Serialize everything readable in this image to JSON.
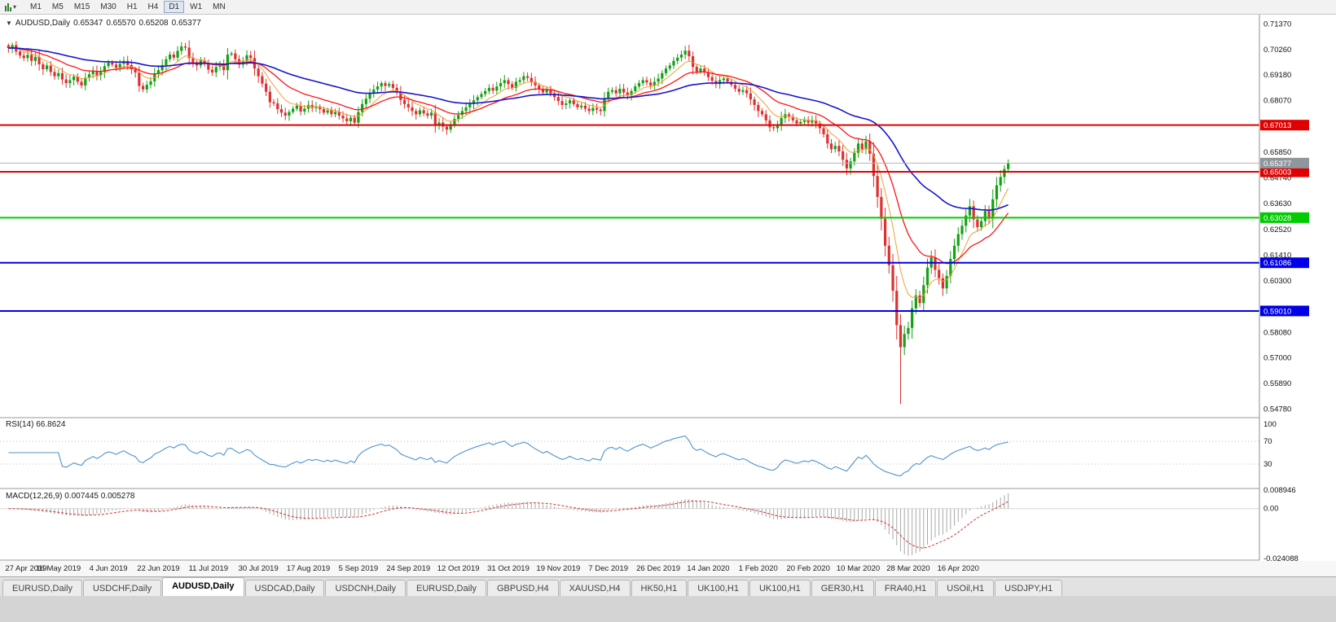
{
  "toolbar": {
    "timeframes": [
      "M1",
      "M5",
      "M15",
      "M30",
      "H1",
      "H4",
      "D1",
      "W1",
      "MN"
    ],
    "active": "D1",
    "chart_type_icon": "candlestick-chart-dropdown"
  },
  "header": {
    "menu_glyph": "▼",
    "symbol": "AUDUSD,Daily",
    "open": "0.65347",
    "high": "0.65570",
    "low": "0.65208",
    "close": "0.65377"
  },
  "tab_bar": {
    "active_index": 2,
    "tabs": [
      "EURUSD,Daily",
      "USDCHF,Daily",
      "AUDUSD,Daily",
      "USDCAD,Daily",
      "USDCNH,Daily",
      "EURUSD,Daily",
      "GBPUSD,H4",
      "XAUUSD,H4",
      "HK50,H1",
      "UK100,H1",
      "UK100,H1",
      "GER30,H1",
      "FRA40,H1",
      "USOil,H1",
      "USDJPY,H1"
    ]
  },
  "chart_data": {
    "type": "candlestick",
    "symbol": "AUDUSD",
    "timeframe": "Daily",
    "y_range": [
      0.5445,
      0.717
    ],
    "x_label_step": 13,
    "x_labels": [
      "27 Apr 2019",
      "16 May 2019",
      "4 Jun 2019",
      "22 Jun 2019",
      "11 Jul 2019",
      "30 Jul 2019",
      "17 Aug 2019",
      "5 Sep 2019",
      "24 Sep 2019",
      "12 Oct 2019",
      "31 Oct 2019",
      "19 Nov 2019",
      "7 Dec 2019",
      "26 Dec 2019",
      "14 Jan 2020",
      "1 Feb 2020",
      "20 Feb 2020",
      "10 Mar 2020",
      "28 Mar 2020",
      "16 Apr 2020"
    ],
    "closes": [
      0.7033,
      0.7046,
      0.7018,
      0.7001,
      0.699,
      0.7004,
      0.6978,
      0.6995,
      0.6963,
      0.6942,
      0.6958,
      0.693,
      0.6912,
      0.6925,
      0.6898,
      0.6882,
      0.6895,
      0.691,
      0.6888,
      0.6872,
      0.6905,
      0.692,
      0.6935,
      0.6915,
      0.693,
      0.6955,
      0.697,
      0.6962,
      0.6948,
      0.6965,
      0.6978,
      0.696,
      0.6942,
      0.6928,
      0.687,
      0.6855,
      0.6875,
      0.689,
      0.6922,
      0.6938,
      0.696,
      0.6985,
      0.7005,
      0.6992,
      0.7021,
      0.704,
      0.7035,
      0.699,
      0.6972,
      0.6958,
      0.698,
      0.6965,
      0.694,
      0.6928,
      0.6952,
      0.696,
      0.6938,
      0.7005,
      0.701,
      0.6985,
      0.6962,
      0.6978,
      0.7002,
      0.699,
      0.6945,
      0.6912,
      0.688,
      0.6845,
      0.68,
      0.6795,
      0.677,
      0.6755,
      0.6742,
      0.6758,
      0.6772,
      0.6785,
      0.676,
      0.6772,
      0.6788,
      0.6775,
      0.6782,
      0.677,
      0.6755,
      0.6765,
      0.6748,
      0.6758,
      0.6742,
      0.673,
      0.6718,
      0.6733,
      0.6712,
      0.6758,
      0.6792,
      0.6815,
      0.6838,
      0.6855,
      0.6868,
      0.6882,
      0.687,
      0.6878,
      0.6862,
      0.6845,
      0.681,
      0.6792,
      0.6778,
      0.6762,
      0.6748,
      0.6765,
      0.6752,
      0.6742,
      0.6755,
      0.67,
      0.6712,
      0.6695,
      0.6682,
      0.6705,
      0.6728,
      0.6745,
      0.6762,
      0.6778,
      0.6792,
      0.6808,
      0.6822,
      0.6835,
      0.6848,
      0.6862,
      0.685,
      0.6868,
      0.6882,
      0.6895,
      0.6878,
      0.6862,
      0.6888,
      0.6895,
      0.6912,
      0.6905,
      0.6888,
      0.6872,
      0.6858,
      0.6842,
      0.6855,
      0.6838,
      0.6822,
      0.6805,
      0.6788,
      0.6795,
      0.6808,
      0.6792,
      0.6778,
      0.6785,
      0.6772,
      0.6762,
      0.6775,
      0.6768,
      0.6762,
      0.6818,
      0.6845,
      0.6852,
      0.6838,
      0.6858,
      0.6842,
      0.683,
      0.6848,
      0.6868,
      0.6882,
      0.6895,
      0.6885,
      0.6872,
      0.6888,
      0.6902,
      0.6925,
      0.6945,
      0.6958,
      0.6978,
      0.6992,
      0.7005,
      0.7022,
      0.6998,
      0.6952,
      0.6932,
      0.6945,
      0.6928,
      0.6908,
      0.6892,
      0.6878,
      0.6895,
      0.6902,
      0.6888,
      0.6875,
      0.6858,
      0.6845,
      0.6852,
      0.6838,
      0.6812,
      0.6788,
      0.6762,
      0.6748,
      0.6722,
      0.6692,
      0.6688,
      0.6702,
      0.6732,
      0.6748,
      0.6738,
      0.6722,
      0.6708,
      0.6715,
      0.6722,
      0.6712,
      0.6722,
      0.6708,
      0.6688,
      0.6662,
      0.6622,
      0.6598,
      0.6612,
      0.6588,
      0.6552,
      0.6515,
      0.6545,
      0.6582,
      0.6622,
      0.6598,
      0.6632,
      0.6578,
      0.6482,
      0.6392,
      0.6298,
      0.6182,
      0.6098,
      0.5988,
      0.584,
      0.5745,
      0.5802,
      0.5828,
      0.5912,
      0.5968,
      0.5935,
      0.6012,
      0.6088,
      0.6132,
      0.6078,
      0.6042,
      0.5998,
      0.6052,
      0.6125,
      0.6182,
      0.6232,
      0.6268,
      0.6312,
      0.6352,
      0.6295,
      0.6262,
      0.6288,
      0.6332,
      0.6298,
      0.6382,
      0.6442,
      0.6478,
      0.6512,
      0.6538
    ],
    "low_overrides": {
      "232": 0.55
    },
    "price_axis_labels": [
      {
        "text": "0.71370",
        "value": 0.7137
      },
      {
        "text": "0.70260",
        "value": 0.7026
      },
      {
        "text": "0.69180",
        "value": 0.6918
      },
      {
        "text": "0.68070",
        "value": 0.6807
      },
      {
        "text": "0.65850",
        "value": 0.6585
      },
      {
        "text": "0.64740",
        "value": 0.6474
      },
      {
        "text": "0.63630",
        "value": 0.6363
      },
      {
        "text": "0.62520",
        "value": 0.6252
      },
      {
        "text": "0.61410",
        "value": 0.6141
      },
      {
        "text": "0.60300",
        "value": 0.603
      },
      {
        "text": "0.58080",
        "value": 0.5808
      },
      {
        "text": "0.57000",
        "value": 0.57
      },
      {
        "text": "0.55890",
        "value": 0.5589
      },
      {
        "text": "0.54780",
        "value": 0.5478
      }
    ],
    "levels": [
      {
        "text": "0.67013",
        "value": 0.67013,
        "color": "#e00000",
        "width": 2,
        "badge": true
      },
      {
        "text": "0.65003",
        "value": 0.65003,
        "color": "#e00000",
        "width": 2,
        "badge": true
      },
      {
        "text": "0.63028",
        "value": 0.63028,
        "color": "#00cc00",
        "width": 2,
        "badge": true
      },
      {
        "text": "0.61086",
        "value": 0.61086,
        "color": "#0000e8",
        "width": 2,
        "badge": true
      },
      {
        "text": "0.59010",
        "value": 0.5901,
        "color": "#0000e8",
        "width": 2,
        "badge": true
      }
    ],
    "current_price": {
      "text": "0.65377",
      "value": 0.65377,
      "line_color": "#b4b4b4",
      "badge_bg": "#8f969c"
    },
    "mas": [
      {
        "period": 8,
        "color": "#f0a030",
        "width": 1
      },
      {
        "period": 20,
        "color": "#ff1414",
        "width": 1.3
      },
      {
        "period": 55,
        "color": "#1616cc",
        "width": 1.6
      }
    ],
    "indicators": {
      "rsi": {
        "label": "RSI(14) 66.8624",
        "period": 14,
        "color": "#4f93ce",
        "ticks": [
          {
            "text": "100",
            "value": 100
          },
          {
            "text": "70",
            "value": 70
          },
          {
            "text": "30",
            "value": 30
          }
        ],
        "level_lines": [
          70,
          30
        ]
      },
      "macd": {
        "label": "MACD(12,26,9) 0.007445 0.005278",
        "fast": 12,
        "slow": 26,
        "signal": 9,
        "hist_color": "#a8a8a8",
        "signal_color": "#d83030",
        "range": [
          -0.024088,
          0.008946
        ],
        "ticks": [
          {
            "text": "0.008946",
            "value": 0.008946
          },
          {
            "text": "0.00",
            "value": 0
          },
          {
            "text": "-0.024088",
            "value": -0.024088
          }
        ]
      }
    },
    "colors": {
      "up": "#15a015",
      "down": "#dd3030",
      "axis_text": "#111111",
      "bg": "#ffffff"
    }
  }
}
